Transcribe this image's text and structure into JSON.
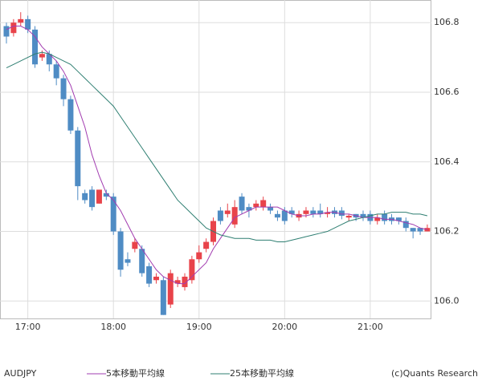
{
  "chart_data": {
    "type": "candlestick",
    "symbol": "AUDJPY",
    "credit": "(c)Quants Research",
    "categories": [
      null,
      null,
      null,
      "17:00",
      null,
      null,
      null,
      null,
      null,
      null,
      null,
      null,
      null,
      null,
      null,
      "18:00",
      null,
      null,
      null,
      null,
      null,
      null,
      null,
      null,
      null,
      null,
      null,
      "19:00",
      null,
      null,
      null,
      null,
      null,
      null,
      null,
      null,
      null,
      null,
      null,
      "20:00",
      null,
      null,
      null,
      null,
      null,
      null,
      null,
      null,
      null,
      null,
      null,
      "21:00",
      null,
      null,
      null,
      null,
      null,
      null,
      null,
      null
    ],
    "open": [
      106.79,
      106.77,
      106.8,
      106.81,
      106.78,
      106.7,
      106.71,
      106.68,
      106.64,
      106.58,
      106.49,
      106.31,
      106.32,
      106.28,
      106.31,
      106.3,
      106.2,
      106.12,
      106.15,
      106.15,
      106.1,
      106.06,
      106.06,
      105.99,
      106.05,
      106.04,
      106.06,
      106.12,
      106.15,
      106.17,
      106.26,
      106.25,
      106.22,
      106.3,
      106.27,
      106.27,
      106.27,
      106.27,
      106.25,
      106.26,
      106.26,
      106.24,
      106.25,
      106.26,
      106.26,
      106.25,
      106.26,
      106.26,
      106.24,
      106.25,
      106.25,
      106.25,
      106.23,
      106.25,
      106.24,
      106.24,
      106.23,
      106.21,
      106.21,
      106.2
    ],
    "high": [
      106.8,
      106.81,
      106.83,
      106.82,
      106.79,
      106.72,
      106.72,
      106.69,
      106.65,
      106.59,
      106.5,
      106.32,
      106.33,
      106.32,
      106.32,
      106.31,
      106.21,
      106.14,
      106.18,
      106.16,
      106.11,
      106.08,
      106.07,
      106.09,
      106.07,
      106.08,
      106.13,
      106.16,
      106.18,
      106.24,
      106.27,
      106.28,
      106.29,
      106.31,
      106.28,
      106.29,
      106.3,
      106.28,
      106.26,
      106.27,
      106.27,
      106.26,
      106.27,
      106.27,
      106.28,
      106.27,
      106.27,
      106.27,
      106.25,
      106.25,
      106.26,
      106.26,
      106.25,
      106.26,
      106.25,
      106.24,
      106.24,
      106.21,
      106.21,
      106.22
    ],
    "low": [
      106.74,
      106.76,
      106.79,
      106.77,
      106.67,
      106.69,
      106.66,
      106.62,
      106.56,
      106.48,
      106.29,
      106.28,
      106.26,
      106.28,
      106.29,
      106.19,
      106.07,
      106.1,
      106.14,
      106.07,
      106.04,
      106.05,
      105.96,
      105.98,
      106.04,
      106.03,
      106.05,
      106.11,
      106.14,
      106.16,
      106.22,
      106.24,
      106.21,
      106.25,
      106.24,
      106.26,
      106.26,
      106.25,
      106.23,
      106.22,
      106.24,
      106.23,
      106.24,
      106.24,
      106.24,
      106.24,
      106.24,
      106.235,
      106.23,
      106.23,
      106.23,
      106.22,
      106.22,
      106.22,
      106.22,
      106.22,
      106.2,
      106.18,
      106.19,
      106.2
    ],
    "close": [
      106.76,
      106.8,
      106.81,
      106.78,
      106.68,
      106.71,
      106.68,
      106.64,
      106.58,
      106.49,
      106.33,
      106.29,
      106.27,
      106.32,
      106.3,
      106.2,
      106.09,
      106.11,
      106.17,
      106.08,
      106.05,
      106.07,
      105.96,
      106.08,
      106.06,
      106.07,
      106.12,
      106.14,
      106.17,
      106.23,
      106.23,
      106.26,
      106.27,
      106.26,
      106.26,
      106.28,
      106.29,
      106.26,
      106.24,
      106.23,
      106.25,
      106.25,
      106.26,
      106.25,
      106.25,
      106.255,
      106.25,
      106.245,
      106.245,
      106.24,
      106.24,
      106.23,
      106.24,
      106.23,
      106.23,
      106.23,
      106.21,
      106.2,
      106.2,
      106.21
    ],
    "up_color": "#e8434a",
    "down_color": "#4f8cc4",
    "series": [
      {
        "name": "5本移動平均線",
        "color": "#a23cb0",
        "values": [
          106.78,
          106.79,
          106.79,
          106.78,
          106.76,
          106.73,
          106.71,
          106.69,
          106.66,
          106.62,
          106.56,
          106.5,
          106.42,
          106.36,
          106.31,
          106.29,
          106.26,
          106.22,
          106.18,
          106.15,
          106.12,
          106.09,
          106.07,
          106.06,
          106.05,
          106.05,
          106.07,
          106.09,
          106.11,
          106.15,
          106.18,
          106.21,
          106.24,
          106.25,
          106.26,
          106.27,
          106.27,
          106.27,
          106.27,
          106.26,
          106.25,
          106.245,
          106.245,
          106.25,
          106.25,
          106.255,
          106.255,
          106.25,
          106.25,
          106.245,
          106.24,
          106.24,
          106.24,
          106.235,
          106.235,
          106.23,
          106.225,
          106.22,
          106.21,
          106.205
        ]
      },
      {
        "name": "25本移動平均線",
        "color": "#2f7f72",
        "values": [
          106.67,
          106.68,
          106.69,
          106.7,
          106.71,
          106.715,
          106.71,
          106.7,
          106.69,
          106.68,
          106.66,
          106.64,
          106.62,
          106.6,
          106.58,
          106.56,
          106.53,
          106.5,
          106.47,
          106.44,
          106.41,
          106.38,
          106.35,
          106.32,
          106.29,
          106.27,
          106.25,
          106.23,
          106.21,
          106.2,
          106.19,
          106.185,
          106.18,
          106.18,
          106.18,
          106.175,
          106.175,
          106.175,
          106.17,
          106.17,
          106.175,
          106.18,
          106.185,
          106.19,
          106.195,
          106.2,
          106.21,
          106.22,
          106.23,
          106.235,
          106.24,
          106.245,
          106.25,
          106.25,
          106.255,
          106.255,
          106.255,
          106.25,
          106.25,
          106.245
        ]
      }
    ],
    "ylim": [
      105.95,
      106.865
    ],
    "yticks": [
      {
        "value": 106,
        "label": "106.0"
      },
      106.2,
      106.4,
      106.6,
      106.8
    ],
    "grid": true
  }
}
